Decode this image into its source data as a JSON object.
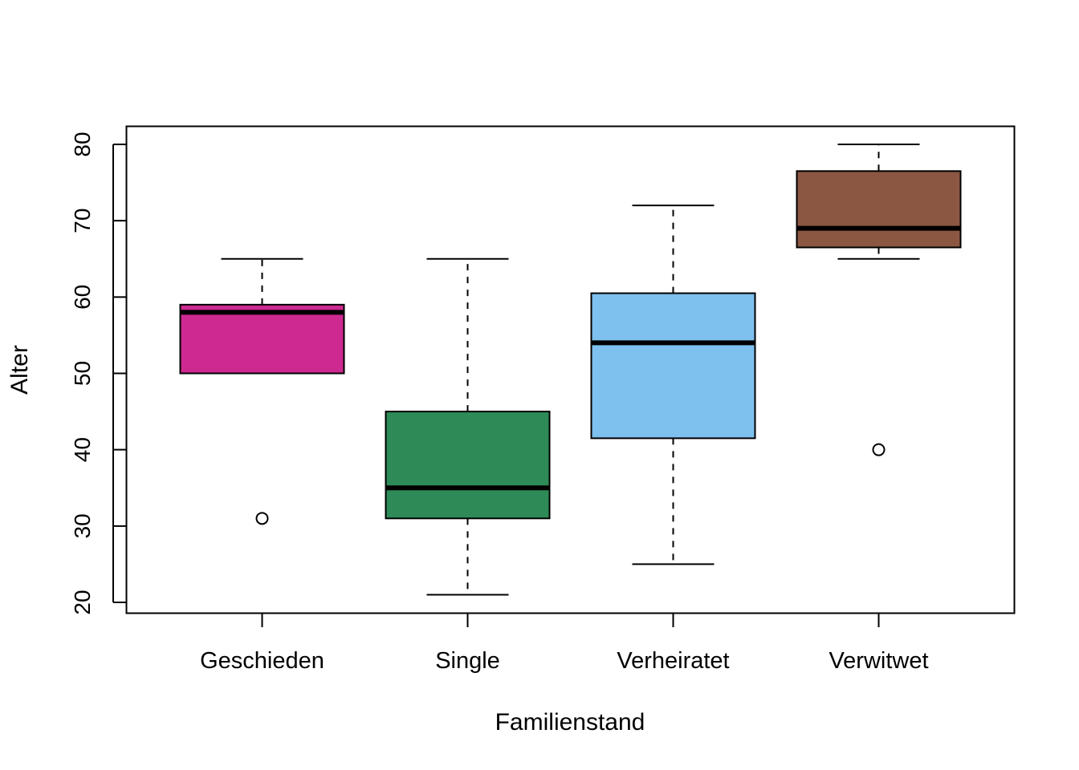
{
  "chart_data": {
    "type": "box",
    "title": "",
    "xlabel": "Familienstand",
    "ylabel": "Alter",
    "ylim": [
      19,
      82.5
    ],
    "yticks": [
      20,
      30,
      40,
      50,
      60,
      70,
      80
    ],
    "categories": [
      "Geschieden",
      "Single",
      "Verheiratet",
      "Verwitwet"
    ],
    "boxes": [
      {
        "category": "Geschieden",
        "whisker_low": 50,
        "q1": 50,
        "median": 58,
        "q3": 59,
        "whisker_high": 65,
        "outliers": [
          31
        ],
        "color": "#CD2990"
      },
      {
        "category": "Single",
        "whisker_low": 21,
        "q1": 31,
        "median": 35,
        "q3": 45,
        "whisker_high": 65,
        "outliers": [],
        "color": "#2E8B57"
      },
      {
        "category": "Verheiratet",
        "whisker_low": 25,
        "q1": 41.5,
        "median": 54,
        "q3": 60.5,
        "whisker_high": 72,
        "outliers": [],
        "color": "#7EC0EE"
      },
      {
        "category": "Verwitwet",
        "whisker_low": 65,
        "q1": 66.5,
        "median": 69,
        "q3": 76.5,
        "whisker_high": 80,
        "outliers": [
          40
        ],
        "color": "#8B5742"
      }
    ],
    "grid": false,
    "legend": "none"
  }
}
